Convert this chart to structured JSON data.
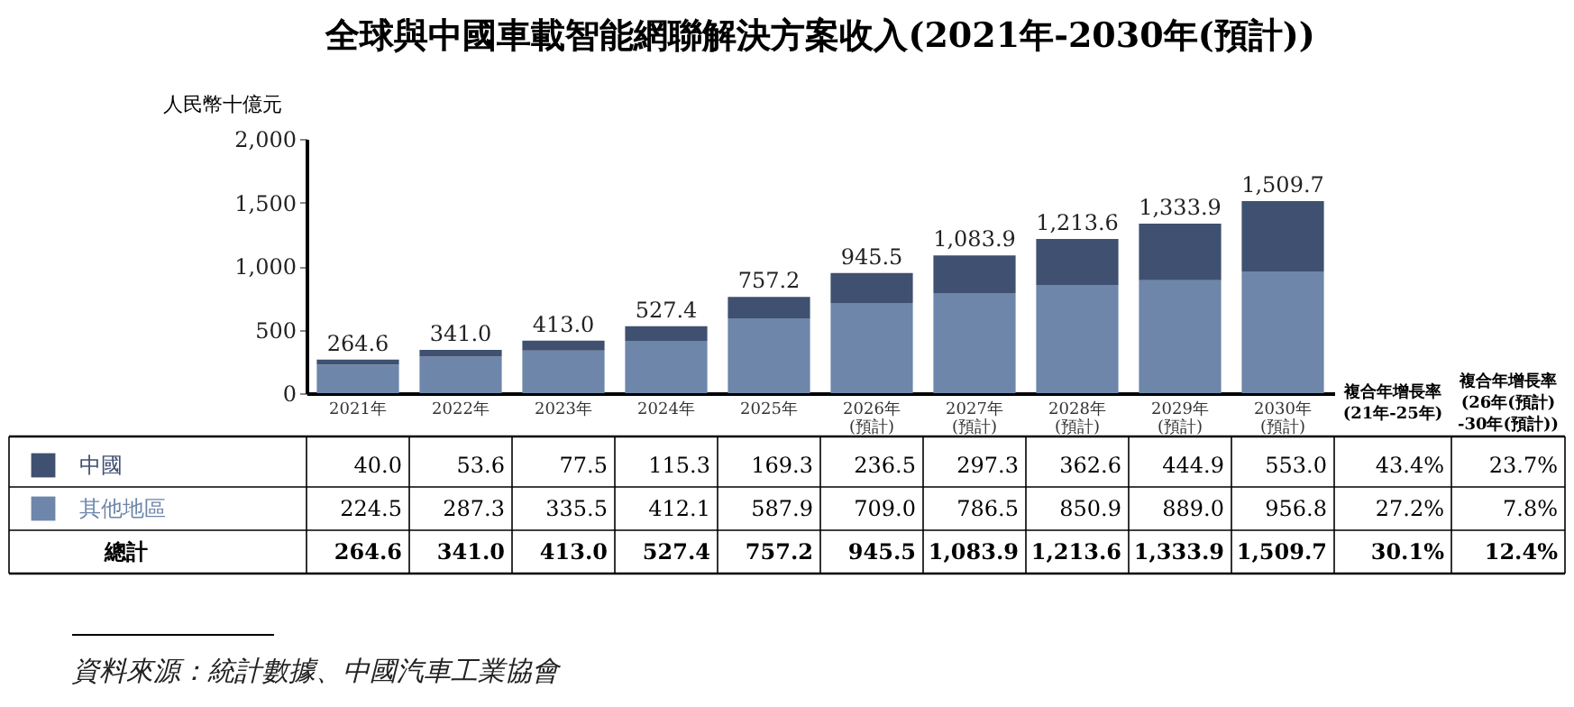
{
  "chart_data": {
    "type": "bar",
    "title": "全球與中國車載智能網聯解決方案收入(2021年-2030年(預計))",
    "ylabel": "人民幣十億元",
    "categories": [
      "2021年",
      "2022年",
      "2023年",
      "2024年",
      "2025年",
      "2026年\n(預計)",
      "2027年\n(預計)",
      "2028年\n(預計)",
      "2029年\n(預計)",
      "2030年\n(預計)"
    ],
    "series": [
      {
        "name": "其他地區",
        "color": "#6d86aa",
        "values": [
          224.5,
          287.3,
          335.5,
          412.1,
          587.9,
          709.0,
          786.5,
          850.9,
          889.0,
          956.8
        ],
        "value_labels": [
          "224.5",
          "287.3",
          "335.5",
          "412.1",
          "587.9",
          "709.0",
          "786.5",
          "850.9",
          "889.0",
          "956.8"
        ]
      },
      {
        "name": "中國",
        "color": "#3f5070",
        "values": [
          40.0,
          53.6,
          77.5,
          115.3,
          169.3,
          236.5,
          297.3,
          362.6,
          444.9,
          553.0
        ],
        "value_labels": [
          "40.0",
          "53.6",
          "77.5",
          "115.3",
          "169.3",
          "236.5",
          "297.3",
          "362.6",
          "444.9",
          "553.0"
        ]
      }
    ],
    "stacked": true,
    "ylim": [
      0,
      2000
    ],
    "yticks": [
      0,
      500,
      {
        "value": 1000,
        "label": "1,000"
      },
      {
        "value": 1500,
        "label": "1,500"
      },
      {
        "value": 2000,
        "label": "2,000"
      }
    ],
    "totals": [
      "264.6",
      "341.0",
      "413.0",
      "527.4",
      "757.2",
      "945.5",
      "1,083.9",
      "1,213.6",
      "1,333.9",
      "1,509.7"
    ],
    "grid": false,
    "legend": "bottom left",
    "annotations": [
      "資料來源：統計數據、中國汽車工業協會",
      "複合年增長率\n(21年-25年)",
      "複合年增長率\n(26年(預計)\n-30年(預計))",
      "總計",
      "43.4%",
      "23.7%",
      "27.2%",
      "7.8%",
      "30.1%",
      "12.4%"
    ]
  }
}
